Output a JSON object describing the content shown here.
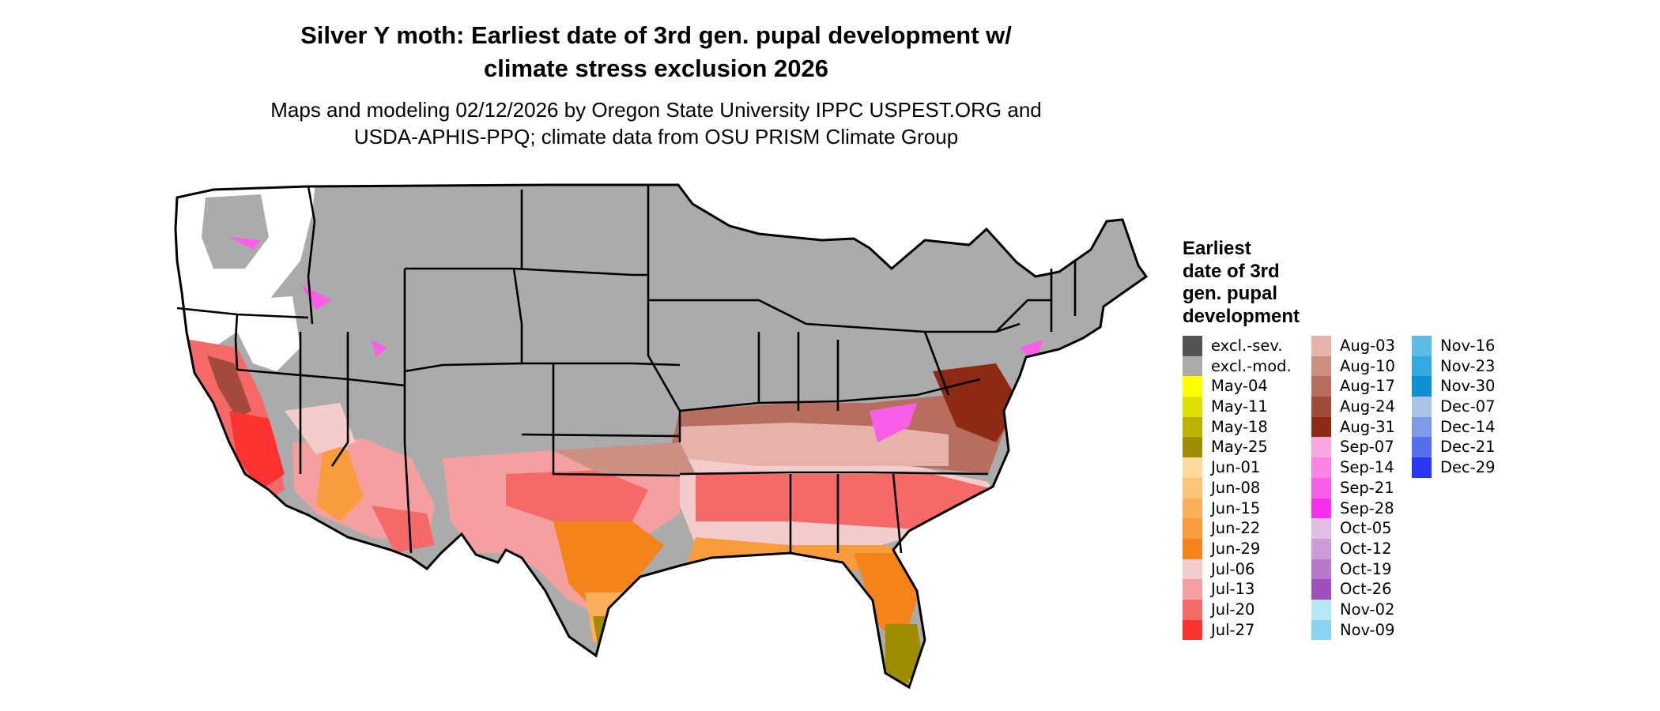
{
  "title": {
    "line1": "Silver Y moth: Earliest date of 3rd gen. pupal development w/",
    "line2": "climate stress exclusion 2026"
  },
  "subtitle": {
    "line1": "Maps and modeling 02/12/2026 by Oregon State University IPPC USPEST.ORG and",
    "line2": "USDA-APHIS-PPQ; climate data from OSU PRISM Climate Group"
  },
  "legend": {
    "title_lines": [
      "Earliest",
      "date of 3rd",
      "gen. pupal",
      "development"
    ],
    "columns": [
      [
        {
          "label": "excl.-sev.",
          "color": "#545454"
        },
        {
          "label": "excl.-mod.",
          "color": "#ababab"
        },
        {
          "label": "May-04",
          "color": "#ffff00"
        },
        {
          "label": "May-11",
          "color": "#e1e100"
        },
        {
          "label": "May-18",
          "color": "#c0b400"
        },
        {
          "label": "May-25",
          "color": "#a08c00"
        },
        {
          "label": "Jun-01",
          "color": "#fcd99c"
        },
        {
          "label": "Jun-08",
          "color": "#fbc577"
        },
        {
          "label": "Jun-15",
          "color": "#fab05a"
        },
        {
          "label": "Jun-22",
          "color": "#f99c3d"
        },
        {
          "label": "Jun-29",
          "color": "#f5831c"
        },
        {
          "label": "Jul-06",
          "color": "#f5cccc"
        },
        {
          "label": "Jul-13",
          "color": "#f5a0a0"
        },
        {
          "label": "Jul-20",
          "color": "#f56969"
        },
        {
          "label": "Jul-27",
          "color": "#ff3232"
        }
      ],
      [
        {
          "label": "Aug-03",
          "color": "#e5b3a9"
        },
        {
          "label": "Aug-10",
          "color": "#cb9082"
        },
        {
          "label": "Aug-17",
          "color": "#b86d5e"
        },
        {
          "label": "Aug-24",
          "color": "#a34a3a"
        },
        {
          "label": "Aug-31",
          "color": "#8c2a14"
        },
        {
          "label": "Sep-07",
          "color": "#f9a8e0"
        },
        {
          "label": "Sep-14",
          "color": "#f984e6"
        },
        {
          "label": "Sep-21",
          "color": "#f95ee8"
        },
        {
          "label": "Sep-28",
          "color": "#f82ef0"
        },
        {
          "label": "Oct-05",
          "color": "#e3bde6"
        },
        {
          "label": "Oct-12",
          "color": "#cf9ad8"
        },
        {
          "label": "Oct-19",
          "color": "#b878c9"
        },
        {
          "label": "Oct-26",
          "color": "#a04ebb"
        },
        {
          "label": "Nov-02",
          "color": "#b8e8f8"
        },
        {
          "label": "Nov-09",
          "color": "#8ad4f0"
        }
      ],
      [
        {
          "label": "Nov-16",
          "color": "#5dbde8"
        },
        {
          "label": "Nov-23",
          "color": "#35a8e0"
        },
        {
          "label": "Nov-30",
          "color": "#1090d0"
        },
        {
          "label": "Dec-07",
          "color": "#a9c4e8"
        },
        {
          "label": "Dec-14",
          "color": "#7f9be8"
        },
        {
          "label": "Dec-21",
          "color": "#5570ee"
        },
        {
          "label": "Dec-29",
          "color": "#2a37f5"
        }
      ]
    ]
  }
}
